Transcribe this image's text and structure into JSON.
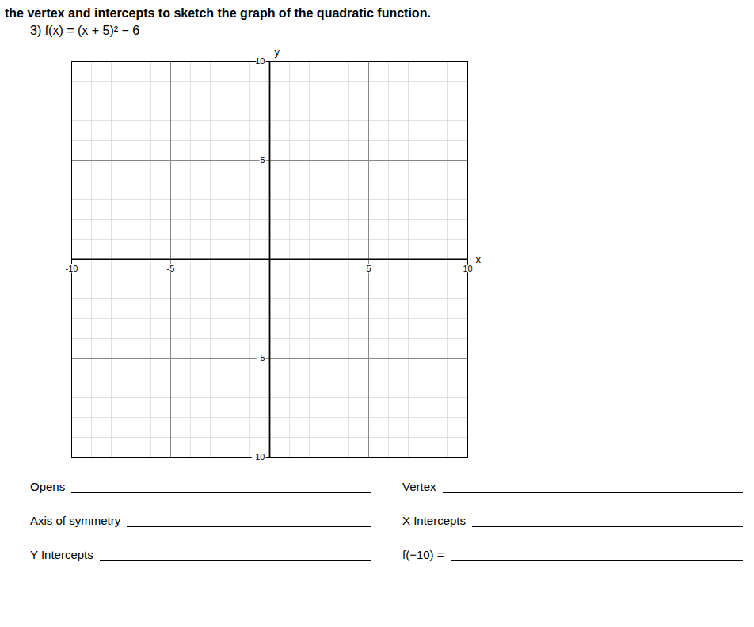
{
  "chart_data": {
    "type": "coordinate_grid",
    "title": "the vertex and intercepts to sketch the graph of the quadratic function.",
    "subtitle": "3) f(x) = (x + 5)² − 6",
    "xlabel": "x",
    "ylabel": "y",
    "xlim": [
      -10,
      10
    ],
    "ylim": [
      -10,
      10
    ],
    "xticks": [
      -10,
      -5,
      5,
      10
    ],
    "yticks": [
      10,
      5,
      -5,
      -10
    ],
    "grid": true,
    "annotations": [
      "Opens",
      "Vertex",
      "Axis of symmetry",
      "X Intercepts",
      "Y Intercepts",
      "f(−10) ="
    ]
  }
}
